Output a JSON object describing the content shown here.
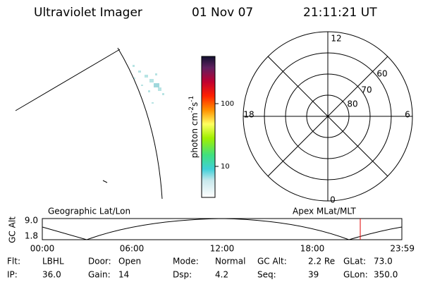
{
  "header": {
    "title": "Ultraviolet Imager",
    "date": "01 Nov 07",
    "time": "21:11:21 UT"
  },
  "colorbar": {
    "label": [
      "photon cm",
      "-2",
      "s",
      "-1"
    ],
    "ticks": [
      "100",
      "10"
    ]
  },
  "polar": {
    "mlt_labels": [
      "12",
      "18",
      "6",
      "0"
    ],
    "lat_labels": [
      "60",
      "70",
      "80"
    ]
  },
  "timeline": {
    "left_title": "Geographic Lat/Lon",
    "right_title": "Apex MLat/MLT",
    "ylabel": "GC Alt",
    "yticks": [
      "9.0",
      "1.8"
    ],
    "xticks": [
      "00:00",
      "06:00",
      "12:00",
      "18:00",
      "23:59"
    ]
  },
  "info": {
    "rows": [
      [
        [
          "Flt:",
          "LBHL"
        ],
        [
          "Door:",
          "Open"
        ],
        [
          "Mode:",
          "Normal"
        ],
        [
          "GC Alt:",
          "2.2 Re"
        ],
        [
          "GLat:",
          "73.0"
        ]
      ],
      [
        [
          "IP:",
          "36.0"
        ],
        [
          "Gain:",
          "14"
        ],
        [
          "Dsp:",
          "4.2"
        ],
        [
          "Seq:",
          "39"
        ],
        [
          "GLon:",
          "350.0"
        ]
      ]
    ]
  }
}
